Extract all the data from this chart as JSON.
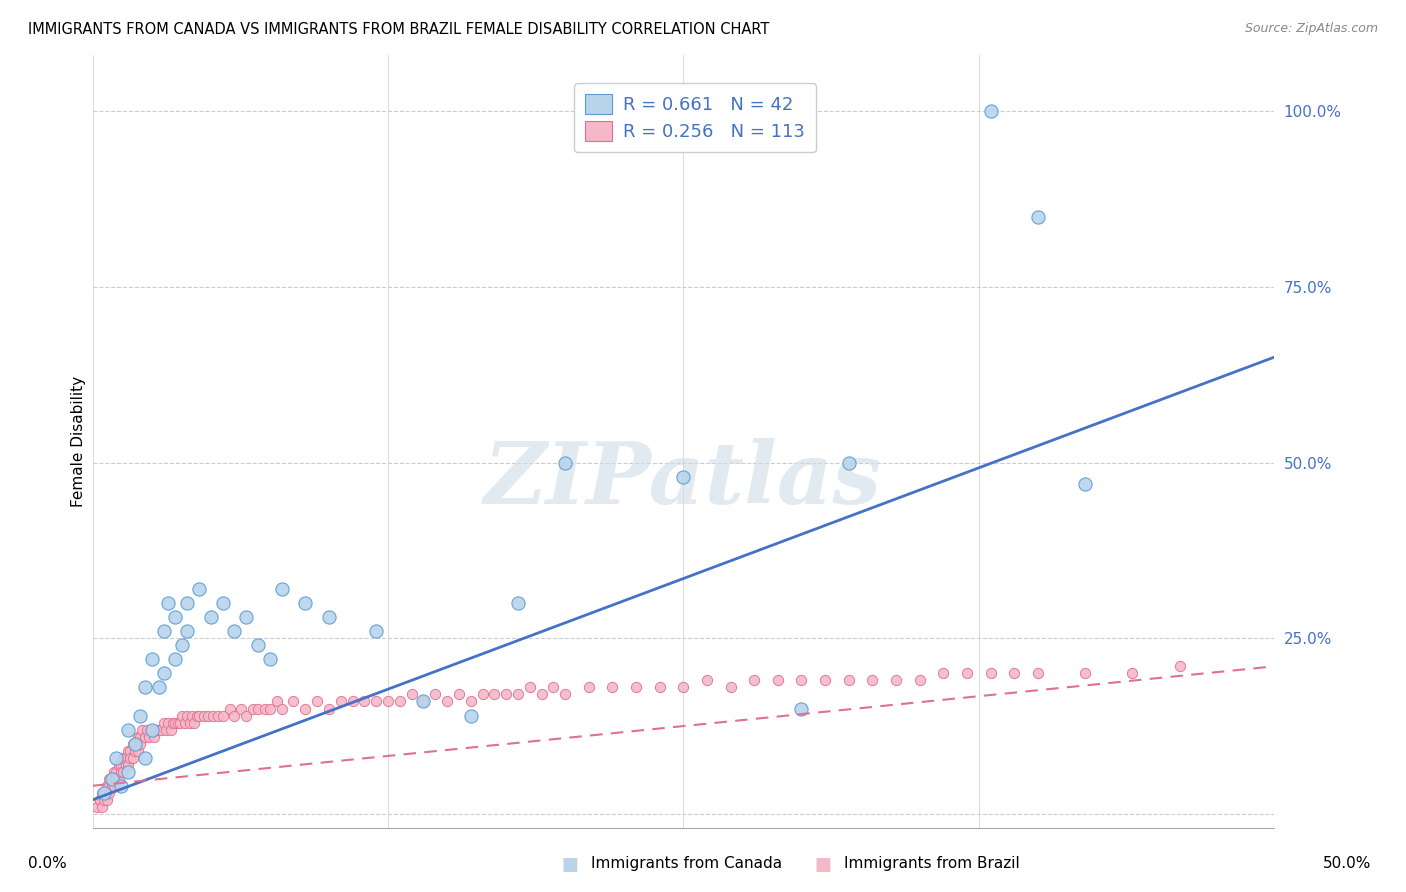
{
  "title": "IMMIGRANTS FROM CANADA VS IMMIGRANTS FROM BRAZIL FEMALE DISABILITY CORRELATION CHART",
  "source": "Source: ZipAtlas.com",
  "ylabel": "Female Disability",
  "ytick_vals": [
    0.0,
    0.25,
    0.5,
    0.75,
    1.0
  ],
  "ytick_labels": [
    "",
    "25.0%",
    "50.0%",
    "75.0%",
    "100.0%"
  ],
  "xlim": [
    0.0,
    0.5
  ],
  "ylim": [
    -0.02,
    1.08
  ],
  "canada_color": "#b8d4eb",
  "canada_edge_color": "#5b9bd5",
  "brazil_color": "#f4b8c8",
  "brazil_edge_color": "#e07090",
  "canada_line_color": "#4472c4",
  "brazil_line_color": "#e07090",
  "watermark_text": "ZIPatlas",
  "canada_trend_x": [
    0.0,
    0.5
  ],
  "canada_trend_y": [
    0.02,
    0.65
  ],
  "brazil_trend_x": [
    0.0,
    0.5
  ],
  "brazil_trend_y": [
    0.04,
    0.21
  ],
  "canada_x": [
    0.005,
    0.008,
    0.01,
    0.012,
    0.015,
    0.015,
    0.018,
    0.02,
    0.022,
    0.022,
    0.025,
    0.025,
    0.028,
    0.03,
    0.03,
    0.032,
    0.035,
    0.035,
    0.038,
    0.04,
    0.04,
    0.045,
    0.05,
    0.055,
    0.06,
    0.065,
    0.07,
    0.075,
    0.08,
    0.09,
    0.1,
    0.12,
    0.14,
    0.16,
    0.18,
    0.2,
    0.25,
    0.3,
    0.32,
    0.38,
    0.4,
    0.42
  ],
  "canada_y": [
    0.03,
    0.05,
    0.08,
    0.04,
    0.06,
    0.12,
    0.1,
    0.14,
    0.08,
    0.18,
    0.12,
    0.22,
    0.18,
    0.2,
    0.26,
    0.3,
    0.28,
    0.22,
    0.24,
    0.3,
    0.26,
    0.32,
    0.28,
    0.3,
    0.26,
    0.28,
    0.24,
    0.22,
    0.32,
    0.3,
    0.28,
    0.26,
    0.16,
    0.14,
    0.3,
    0.5,
    0.48,
    0.15,
    0.5,
    1.0,
    0.85,
    0.47
  ],
  "brazil_x": [
    0.002,
    0.003,
    0.003,
    0.004,
    0.004,
    0.005,
    0.005,
    0.006,
    0.006,
    0.007,
    0.007,
    0.008,
    0.008,
    0.009,
    0.009,
    0.01,
    0.01,
    0.011,
    0.011,
    0.012,
    0.012,
    0.013,
    0.013,
    0.014,
    0.014,
    0.015,
    0.015,
    0.016,
    0.016,
    0.017,
    0.017,
    0.018,
    0.018,
    0.019,
    0.019,
    0.02,
    0.02,
    0.021,
    0.022,
    0.023,
    0.024,
    0.025,
    0.026,
    0.027,
    0.028,
    0.029,
    0.03,
    0.031,
    0.032,
    0.033,
    0.034,
    0.035,
    0.036,
    0.037,
    0.038,
    0.039,
    0.04,
    0.041,
    0.042,
    0.043,
    0.044,
    0.045,
    0.047,
    0.049,
    0.051,
    0.053,
    0.055,
    0.058,
    0.06,
    0.063,
    0.065,
    0.068,
    0.07,
    0.073,
    0.075,
    0.078,
    0.08,
    0.085,
    0.09,
    0.095,
    0.1,
    0.105,
    0.11,
    0.115,
    0.12,
    0.125,
    0.13,
    0.135,
    0.14,
    0.145,
    0.15,
    0.155,
    0.16,
    0.165,
    0.17,
    0.175,
    0.18,
    0.185,
    0.19,
    0.195,
    0.2,
    0.21,
    0.22,
    0.23,
    0.24,
    0.25,
    0.26,
    0.27,
    0.28,
    0.29,
    0.3,
    0.31,
    0.32,
    0.33,
    0.34,
    0.35,
    0.36,
    0.37,
    0.38,
    0.39,
    0.4,
    0.42,
    0.44,
    0.46
  ],
  "brazil_y": [
    0.01,
    0.02,
    0.02,
    0.03,
    0.01,
    0.03,
    0.02,
    0.04,
    0.02,
    0.05,
    0.03,
    0.05,
    0.04,
    0.06,
    0.04,
    0.06,
    0.05,
    0.07,
    0.05,
    0.07,
    0.06,
    0.08,
    0.06,
    0.08,
    0.07,
    0.09,
    0.07,
    0.09,
    0.08,
    0.1,
    0.08,
    0.1,
    0.09,
    0.11,
    0.09,
    0.11,
    0.1,
    0.12,
    0.11,
    0.12,
    0.11,
    0.12,
    0.11,
    0.12,
    0.12,
    0.12,
    0.13,
    0.12,
    0.13,
    0.12,
    0.13,
    0.13,
    0.13,
    0.13,
    0.14,
    0.13,
    0.14,
    0.13,
    0.14,
    0.13,
    0.14,
    0.14,
    0.14,
    0.14,
    0.14,
    0.14,
    0.14,
    0.15,
    0.14,
    0.15,
    0.14,
    0.15,
    0.15,
    0.15,
    0.15,
    0.16,
    0.15,
    0.16,
    0.15,
    0.16,
    0.15,
    0.16,
    0.16,
    0.16,
    0.16,
    0.16,
    0.16,
    0.17,
    0.16,
    0.17,
    0.16,
    0.17,
    0.16,
    0.17,
    0.17,
    0.17,
    0.17,
    0.18,
    0.17,
    0.18,
    0.17,
    0.18,
    0.18,
    0.18,
    0.18,
    0.18,
    0.19,
    0.18,
    0.19,
    0.19,
    0.19,
    0.19,
    0.19,
    0.19,
    0.19,
    0.19,
    0.2,
    0.2,
    0.2,
    0.2,
    0.2,
    0.2,
    0.2,
    0.21
  ],
  "grid_color": "#cccccc",
  "background_color": "#ffffff",
  "tick_color": "#4472c4"
}
